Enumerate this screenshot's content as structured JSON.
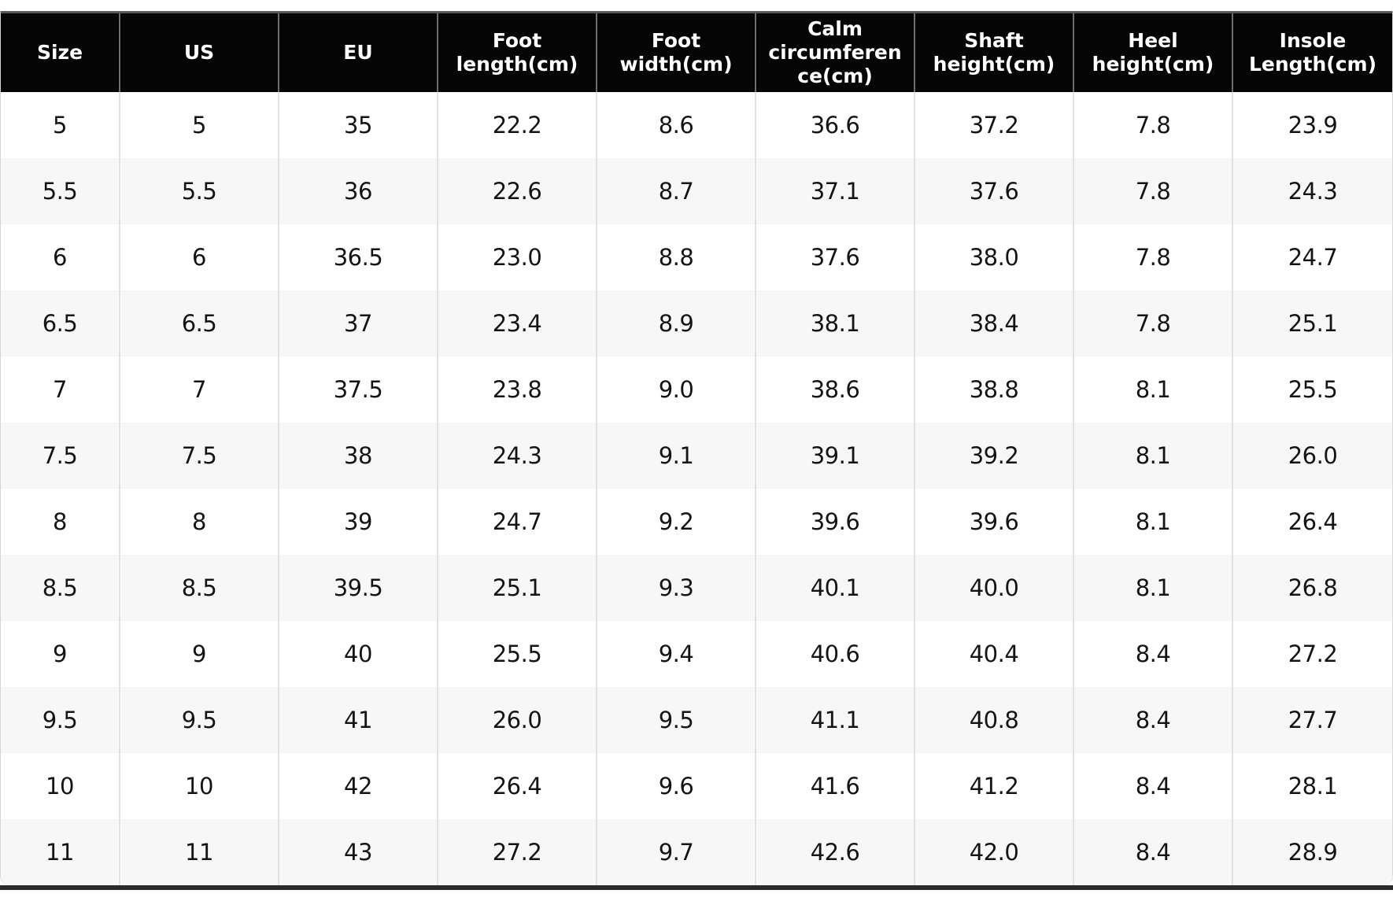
{
  "chart_data": {
    "type": "table",
    "columns": [
      "Size",
      "US",
      "EU",
      "Foot length(cm)",
      "Foot width(cm)",
      "Calm circumference(cm)",
      "Shaft height(cm)",
      "Heel height(cm)",
      "Insole Length(cm)"
    ],
    "rows": [
      [
        "5",
        "5",
        "35",
        "22.2",
        "8.6",
        "36.6",
        "37.2",
        "7.8",
        "23.9"
      ],
      [
        "5.5",
        "5.5",
        "36",
        "22.6",
        "8.7",
        "37.1",
        "37.6",
        "7.8",
        "24.3"
      ],
      [
        "6",
        "6",
        "36.5",
        "23.0",
        "8.8",
        "37.6",
        "38.0",
        "7.8",
        "24.7"
      ],
      [
        "6.5",
        "6.5",
        "37",
        "23.4",
        "8.9",
        "38.1",
        "38.4",
        "7.8",
        "25.1"
      ],
      [
        "7",
        "7",
        "37.5",
        "23.8",
        "9.0",
        "38.6",
        "38.8",
        "8.1",
        "25.5"
      ],
      [
        "7.5",
        "7.5",
        "38",
        "24.3",
        "9.1",
        "39.1",
        "39.2",
        "8.1",
        "26.0"
      ],
      [
        "8",
        "8",
        "39",
        "24.7",
        "9.2",
        "39.6",
        "39.6",
        "8.1",
        "26.4"
      ],
      [
        "8.5",
        "8.5",
        "39.5",
        "25.1",
        "9.3",
        "40.1",
        "40.0",
        "8.1",
        "26.8"
      ],
      [
        "9",
        "9",
        "40",
        "25.5",
        "9.4",
        "40.6",
        "40.4",
        "8.4",
        "27.2"
      ],
      [
        "9.5",
        "9.5",
        "41",
        "26.0",
        "9.5",
        "41.1",
        "40.8",
        "8.4",
        "27.7"
      ],
      [
        "10",
        "10",
        "42",
        "26.4",
        "9.6",
        "41.6",
        "41.2",
        "8.4",
        "28.1"
      ],
      [
        "11",
        "11",
        "43",
        "27.2",
        "9.7",
        "42.6",
        "42.0",
        "8.4",
        "28.9"
      ]
    ],
    "layout": {
      "grid": "off",
      "header_style": "black-band",
      "row_striping": "white-then-lightgray"
    }
  },
  "colors": {
    "header_bg": "#050505",
    "header_text": "#ffffff",
    "row_bg": "#ffffff",
    "row_alt_bg": "#f7f7f8",
    "top_border": "#59595c",
    "side_border": "#d6d6d8",
    "bottom_bar": "#2b2b2d",
    "header_sep": "#6e6e72",
    "body_sep": "#e2e2e4",
    "body_text": "#141415"
  }
}
